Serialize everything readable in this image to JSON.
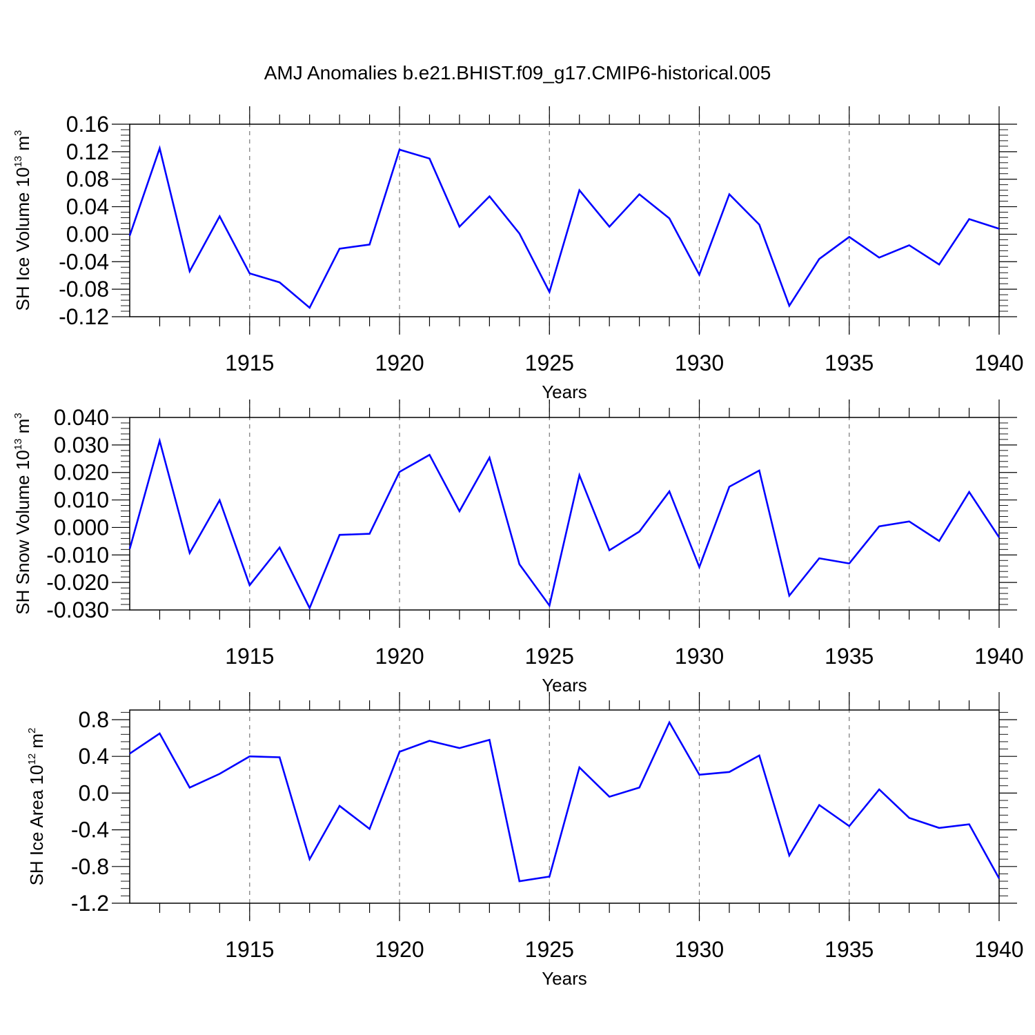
{
  "title": "AMJ Anomalies b.e21.BHIST.f09_g17.CMIP6-historical.005",
  "chart_data": [
    {
      "type": "line",
      "id": "ice-volume",
      "ylabel": {
        "text": "SH Ice Volume 10",
        "exp": "13",
        "unit": " m",
        "unit_exp": "3"
      },
      "xlabel": "Years",
      "xlim": [
        1911,
        1940
      ],
      "ylim": [
        -0.12,
        0.16
      ],
      "xticks": [
        1915,
        1920,
        1925,
        1930,
        1935,
        1940
      ],
      "yticks": [
        -0.12,
        -0.08,
        -0.04,
        0.0,
        0.04,
        0.08,
        0.12,
        0.16
      ],
      "ytick_labels": [
        "-0.12",
        "-0.08",
        "-0.04",
        "0.00",
        "0.04",
        "0.08",
        "0.12",
        "0.16"
      ],
      "color": "#0000ff",
      "x": [
        1911,
        1912,
        1913,
        1914,
        1915,
        1916,
        1917,
        1918,
        1919,
        1920,
        1921,
        1922,
        1923,
        1924,
        1925,
        1926,
        1927,
        1928,
        1929,
        1930,
        1931,
        1932,
        1933,
        1934,
        1935,
        1936,
        1937,
        1938,
        1939,
        1940
      ],
      "values": [
        -0.002,
        0.125,
        -0.054,
        0.026,
        -0.057,
        -0.07,
        -0.107,
        -0.021,
        -0.015,
        0.123,
        0.11,
        0.011,
        0.055,
        0.001,
        -0.084,
        0.064,
        0.011,
        0.058,
        0.023,
        -0.059,
        0.058,
        0.014,
        -0.104,
        -0.036,
        -0.004,
        -0.034,
        -0.016,
        -0.044,
        0.022,
        0.008
      ]
    },
    {
      "type": "line",
      "id": "snow-volume",
      "ylabel": {
        "text": "SH Snow Volume 10",
        "exp": "13",
        "unit": " m",
        "unit_exp": "3"
      },
      "xlabel": "Years",
      "xlim": [
        1911,
        1940
      ],
      "ylim": [
        -0.03,
        0.04
      ],
      "xticks": [
        1915,
        1920,
        1925,
        1930,
        1935,
        1940
      ],
      "yticks": [
        -0.03,
        -0.02,
        -0.01,
        0.0,
        0.01,
        0.02,
        0.03,
        0.04
      ],
      "ytick_labels": [
        "-0.030",
        "-0.020",
        "-0.010",
        "0.000",
        "0.010",
        "0.020",
        "0.030",
        "0.040"
      ],
      "color": "#0000ff",
      "x": [
        1911,
        1912,
        1913,
        1914,
        1915,
        1916,
        1917,
        1918,
        1919,
        1920,
        1921,
        1922,
        1923,
        1924,
        1925,
        1926,
        1927,
        1928,
        1929,
        1930,
        1931,
        1932,
        1933,
        1934,
        1935,
        1936,
        1937,
        1938,
        1939,
        1940
      ],
      "values": [
        -0.0078,
        0.0315,
        -0.0093,
        0.0099,
        -0.021,
        -0.0073,
        -0.0293,
        -0.0027,
        -0.0023,
        0.0202,
        0.0264,
        0.0059,
        0.0254,
        -0.0134,
        -0.0284,
        0.019,
        -0.0083,
        -0.0015,
        0.0131,
        -0.0144,
        0.0148,
        0.0207,
        -0.0248,
        -0.0112,
        -0.0131,
        0.0004,
        0.0022,
        -0.0049,
        0.0129,
        -0.0036
      ]
    },
    {
      "type": "line",
      "id": "ice-area",
      "ylabel": {
        "text": "SH Ice Area 10",
        "exp": "12",
        "unit": " m",
        "unit_exp": "2"
      },
      "xlabel": "Years",
      "xlim": [
        1911,
        1940
      ],
      "ylim": [
        -1.2,
        0.9
      ],
      "xticks": [
        1915,
        1920,
        1925,
        1930,
        1935,
        1940
      ],
      "yticks": [
        -1.2,
        -0.8,
        -0.4,
        0.0,
        0.4,
        0.8
      ],
      "ytick_labels": [
        "-1.2",
        "-0.8",
        "-0.4",
        "0.0",
        "0.4",
        "0.8"
      ],
      "color": "#0000ff",
      "x": [
        1911,
        1912,
        1913,
        1914,
        1915,
        1916,
        1917,
        1918,
        1919,
        1920,
        1921,
        1922,
        1923,
        1924,
        1925,
        1926,
        1927,
        1928,
        1929,
        1930,
        1931,
        1932,
        1933,
        1934,
        1935,
        1936,
        1937,
        1938,
        1939,
        1940
      ],
      "values": [
        0.43,
        0.65,
        0.06,
        0.21,
        0.4,
        0.39,
        -0.72,
        -0.14,
        -0.39,
        0.45,
        0.57,
        0.49,
        0.58,
        -0.96,
        -0.91,
        0.28,
        -0.04,
        0.06,
        0.77,
        0.2,
        0.23,
        0.41,
        -0.68,
        -0.13,
        -0.36,
        0.04,
        -0.27,
        -0.38,
        -0.34,
        -0.93
      ]
    }
  ]
}
